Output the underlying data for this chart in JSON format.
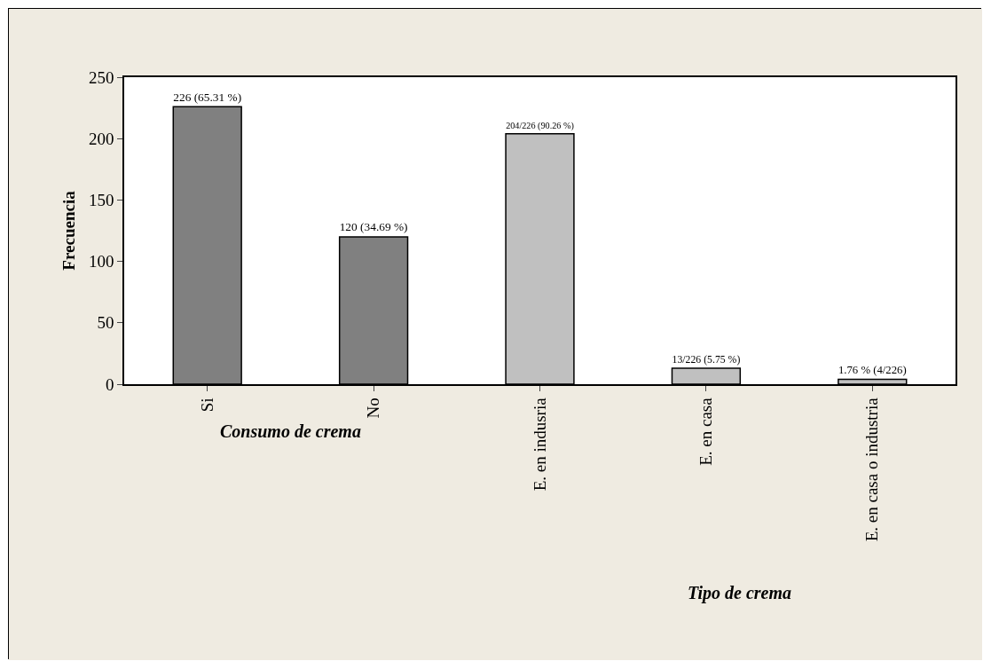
{
  "chart_data": {
    "type": "bar",
    "ylabel": "Frecuencia",
    "categories": [
      "Si",
      "No",
      "E. en indusria",
      "E. en casa",
      "E. en casa o industria"
    ],
    "values": [
      226,
      120,
      204,
      13,
      4
    ],
    "colors": [
      "#808080",
      "#808080",
      "#c0c0c0",
      "#c0c0c0",
      "#c0c0c0"
    ],
    "value_labels": [
      "226 (65.31 %)",
      "120 (34.69 %)",
      "204/226 (90.26 %)",
      "13/226 (5.75 %)",
      "1.76 % (4/226)"
    ],
    "ylim": [
      0,
      250
    ],
    "yticks": [
      0,
      50,
      100,
      150,
      200,
      250
    ],
    "annotations": [
      "Consumo de crema",
      "Tipo de crema"
    ],
    "grid": false,
    "legend": false
  }
}
